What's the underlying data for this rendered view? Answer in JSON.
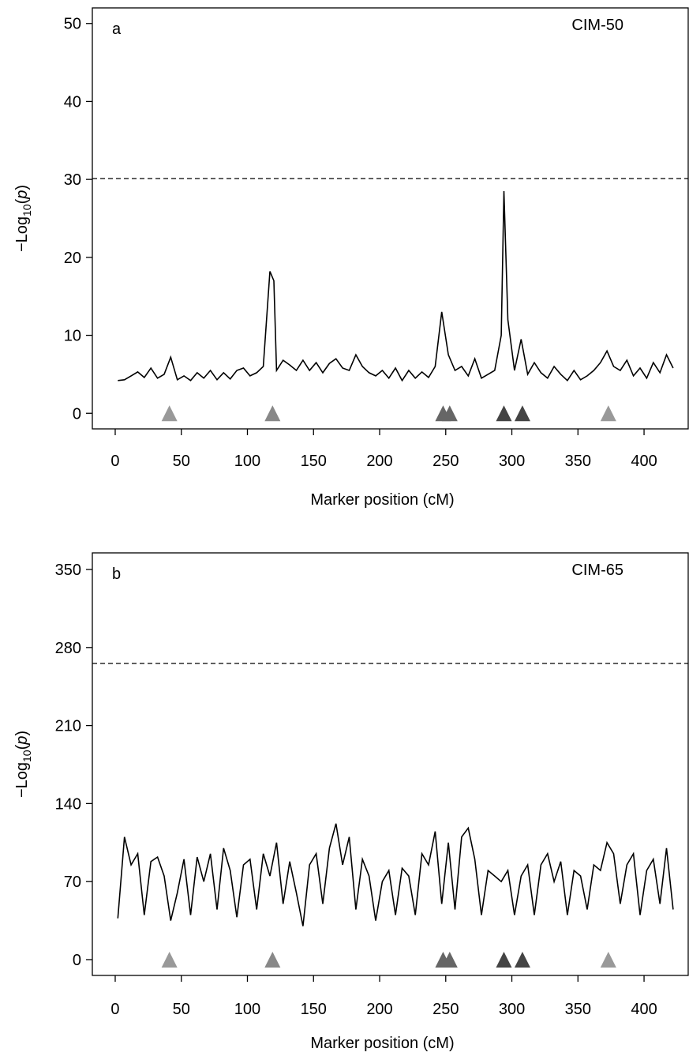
{
  "chart_data": [
    {
      "type": "line",
      "panel_label": "a",
      "title": "CIM-50",
      "xlabel": "Marker position (cM)",
      "ylabel_parts": [
        "−Log",
        "10",
        "(",
        "p",
        ")"
      ],
      "xlim": [
        -17.3,
        433.4
      ],
      "ylim": [
        -2.0,
        52.0
      ],
      "xticks": [
        0,
        50,
        100,
        150,
        200,
        250,
        300,
        350,
        400
      ],
      "yticks": [
        0,
        10,
        20,
        30,
        40,
        50
      ],
      "threshold": 30.1,
      "x": [
        2,
        7,
        12,
        17,
        22,
        27,
        32,
        37,
        42,
        47,
        52,
        57,
        62,
        67,
        72,
        77,
        82,
        87,
        92,
        97,
        102,
        107,
        112,
        117,
        120,
        122,
        127,
        132,
        137,
        142,
        147,
        152,
        157,
        162,
        167,
        172,
        177,
        182,
        187,
        192,
        197,
        202,
        207,
        212,
        217,
        222,
        227,
        232,
        237,
        242,
        247,
        252,
        257,
        262,
        267,
        272,
        277,
        282,
        287,
        292,
        294,
        297,
        302,
        307,
        312,
        317,
        322,
        327,
        332,
        337,
        342,
        347,
        352,
        357,
        362,
        367,
        372,
        377,
        382,
        387,
        392,
        397,
        402,
        407,
        412,
        417,
        422
      ],
      "values": [
        4.2,
        4.3,
        4.8,
        5.3,
        4.6,
        5.8,
        4.5,
        5.0,
        7.2,
        4.3,
        4.8,
        4.2,
        5.2,
        4.5,
        5.5,
        4.3,
        5.2,
        4.4,
        5.5,
        5.8,
        4.8,
        5.2,
        6.0,
        18.2,
        17.0,
        5.5,
        6.8,
        6.2,
        5.5,
        6.8,
        5.5,
        6.5,
        5.2,
        6.4,
        7.0,
        5.8,
        5.5,
        7.5,
        6.0,
        5.2,
        4.8,
        5.5,
        4.5,
        5.8,
        4.2,
        5.5,
        4.5,
        5.3,
        4.6,
        6.0,
        13.0,
        7.5,
        5.5,
        6.0,
        4.8,
        7.0,
        4.5,
        5.0,
        5.5,
        10.0,
        28.5,
        12.0,
        5.5,
        9.5,
        5.0,
        6.5,
        5.2,
        4.5,
        6.0,
        5.0,
        4.2,
        5.5,
        4.3,
        4.8,
        5.5,
        6.5,
        8.0,
        6.0,
        5.5,
        6.8,
        4.8,
        5.8,
        4.5,
        6.5,
        5.2,
        7.5,
        5.8
      ],
      "color": "#000000",
      "markers": {
        "x": [
          41,
          119,
          248,
          253,
          294,
          308,
          373
        ],
        "colors": [
          "#999999",
          "#888888",
          "#666666",
          "#666666",
          "#444444",
          "#444444",
          "#999999"
        ]
      }
    },
    {
      "type": "line",
      "panel_label": "b",
      "title": "CIM-65",
      "xlabel": "Marker position (cM)",
      "ylabel_parts": [
        "−Log",
        "10",
        "(",
        "p",
        ")"
      ],
      "xlim": [
        -17.3,
        433.4
      ],
      "ylim": [
        -14.2,
        364.9
      ],
      "xticks": [
        0,
        50,
        100,
        150,
        200,
        250,
        300,
        350,
        400
      ],
      "yticks": [
        0,
        70,
        140,
        210,
        280,
        350
      ],
      "threshold": 265.7,
      "x": [
        2,
        7,
        12,
        17,
        22,
        27,
        32,
        37,
        42,
        47,
        52,
        57,
        62,
        67,
        72,
        77,
        82,
        87,
        92,
        97,
        102,
        107,
        112,
        117,
        122,
        127,
        132,
        137,
        142,
        147,
        152,
        157,
        162,
        167,
        172,
        177,
        182,
        187,
        192,
        197,
        202,
        207,
        212,
        217,
        222,
        227,
        232,
        237,
        242,
        247,
        252,
        257,
        262,
        267,
        272,
        277,
        282,
        287,
        292,
        297,
        302,
        307,
        312,
        317,
        322,
        327,
        332,
        337,
        342,
        347,
        352,
        357,
        362,
        367,
        372,
        377,
        382,
        387,
        392,
        397,
        402,
        407,
        412,
        417,
        422
      ],
      "values": [
        37,
        110,
        85,
        95,
        40,
        88,
        92,
        75,
        35,
        60,
        90,
        40,
        92,
        70,
        95,
        45,
        100,
        80,
        38,
        85,
        90,
        45,
        95,
        75,
        105,
        50,
        88,
        60,
        30,
        85,
        95,
        50,
        100,
        122,
        85,
        110,
        45,
        90,
        75,
        35,
        70,
        80,
        40,
        82,
        75,
        40,
        95,
        85,
        115,
        50,
        105,
        45,
        110,
        118,
        90,
        40,
        80,
        75,
        70,
        80,
        40,
        75,
        85,
        40,
        85,
        95,
        70,
        88,
        40,
        80,
        75,
        45,
        85,
        80,
        105,
        95,
        50,
        85,
        95,
        40,
        80,
        90,
        50,
        100,
        45
      ],
      "color": "#000000",
      "markers": {
        "x": [
          41,
          119,
          248,
          253,
          294,
          308,
          373
        ],
        "colors": [
          "#999999",
          "#888888",
          "#666666",
          "#666666",
          "#444444",
          "#444444",
          "#999999"
        ]
      }
    }
  ]
}
